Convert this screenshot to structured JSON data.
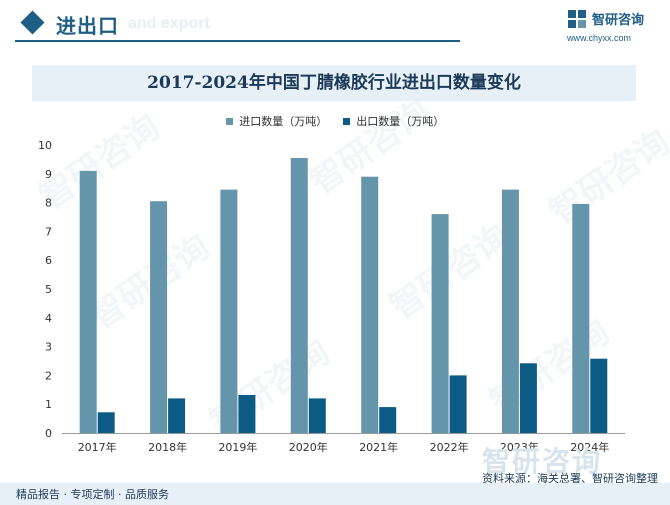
{
  "header": {
    "title": "进出口",
    "subtitle": "and export",
    "brand_name": "智研咨询",
    "brand_url": "www.chyxx.com"
  },
  "watermark_text": "智研咨询",
  "footer": {
    "tagline": "精品报告 · 专项定制 · 品质服务",
    "source": "资料来源：海关总署、智研咨询整理"
  },
  "colors": {
    "brand": "#1f5f86",
    "import": "#6595ab",
    "export": "#0b5b84"
  },
  "chart_data": {
    "type": "bar",
    "title": "2017-2024年中国丁腈橡胶行业进出口数量变化",
    "xlabel": "",
    "ylabel": "",
    "ylim": [
      0,
      10
    ],
    "yticks": [
      "0",
      "1",
      "2",
      "3",
      "4",
      "5",
      "6",
      "7",
      "8",
      "9",
      "10"
    ],
    "categories": [
      "2017年",
      "2018年",
      "2019年",
      "2020年",
      "2021年",
      "2022年",
      "2023年",
      "2024年"
    ],
    "series": [
      {
        "name": "进口数量（万吨）",
        "values": [
          9.1,
          8.05,
          8.45,
          9.55,
          8.9,
          7.6,
          8.45,
          7.95
        ]
      },
      {
        "name": "出口数量（万吨）",
        "values": [
          0.72,
          1.2,
          1.32,
          1.2,
          0.9,
          2.0,
          2.42,
          2.58
        ]
      }
    ],
    "legend_position": "top-center",
    "grid": false
  }
}
